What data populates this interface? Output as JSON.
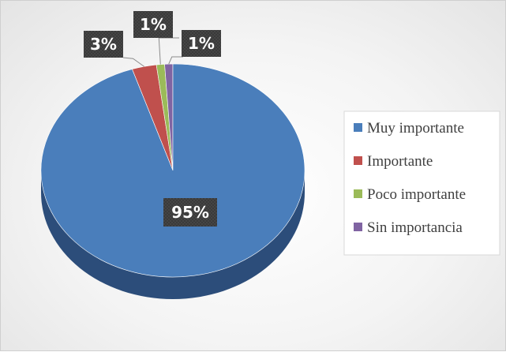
{
  "chart_data": {
    "type": "pie",
    "title": "",
    "legend_position": "right",
    "categories": [
      "Muy importante",
      "Importante",
      "Poco importante",
      "Sin importancia"
    ],
    "values": [
      95,
      3,
      1,
      1
    ],
    "labels": [
      "95%",
      "3%",
      "1%",
      "1%"
    ],
    "colors": [
      "#4a7ebb",
      "#c0504d",
      "#9bbb59",
      "#8064a2"
    ],
    "dark_colors": [
      "#2c4d7a",
      "#7a2f2d",
      "#5f7636",
      "#4e3d66"
    ]
  }
}
